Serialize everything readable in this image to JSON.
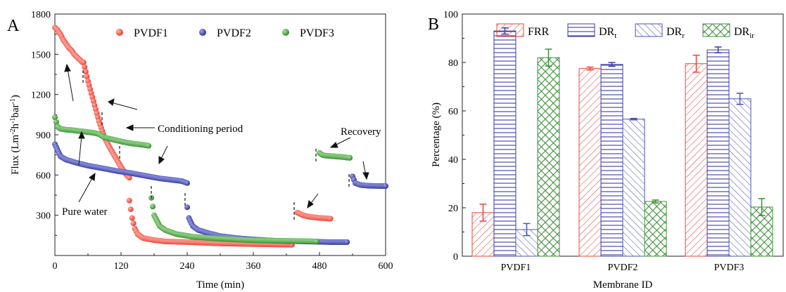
{
  "panel_a": {
    "panel_label": "A",
    "xlabel": "Time (min)",
    "ylabel_parts": [
      "Flux  (Lm",
      "-2",
      "h",
      "-1",
      "bar",
      "-1",
      ")"
    ],
    "annotations": {
      "conditioning": "Conditioning period",
      "pure_water": "Pure water",
      "recovery": "Recovery"
    }
  },
  "panel_b": {
    "panel_label": "B",
    "xlabel": "Membrane ID",
    "ylabel": "Percentage (%)"
  },
  "colors": {
    "pvdf1": "#ef3b2f",
    "pvdf2": "#3a3fa8",
    "pvdf3": "#3f9b35",
    "frr": "#e8453a",
    "drt": "#3b3ba8",
    "drr": "#4b55b0",
    "drir": "#3f8f3a"
  },
  "chart_data": [
    {
      "type": "scatter",
      "xlabel": "Time (min)",
      "ylabel": "Flux (Lm-2h-1bar-1)",
      "xlim": [
        0,
        600
      ],
      "ylim": [
        0,
        1800
      ],
      "xticks": [
        0,
        120,
        240,
        360,
        480,
        600
      ],
      "yticks": [
        300,
        600,
        900,
        1200,
        1500,
        1800
      ],
      "legend": "top-center",
      "series": [
        {
          "name": "PVDF1",
          "color": "#ef3b2f",
          "segments": [
            {
              "x": [
                0,
                5,
                10,
                15,
                20,
                25,
                30,
                35,
                40,
                45,
                50
              ],
              "y": [
                1700,
                1680,
                1650,
                1610,
                1580,
                1550,
                1530,
                1500,
                1480,
                1460,
                1440
              ]
            },
            {
              "x": [
                52,
                60,
                70,
                80,
                90,
                100,
                110,
                120,
                128,
                135
              ],
              "y": [
                1440,
                1300,
                1150,
                1000,
                880,
                800,
                730,
                660,
                610,
                580
              ]
            },
            {
              "x": [
                135,
                140,
                145,
                150,
                160,
                180,
                200,
                240,
                300,
                360,
                400,
                430
              ],
              "y": [
                410,
                280,
                200,
                160,
                130,
                115,
                105,
                100,
                90,
                85,
                82,
                80
              ]
            },
            {
              "x": [
                440,
                450,
                460,
                470,
                480,
                490,
                500
              ],
              "y": [
                320,
                300,
                290,
                285,
                280,
                278,
                275
              ]
            }
          ]
        },
        {
          "name": "PVDF2",
          "color": "#3a3fa8",
          "segments": [
            {
              "x": [
                0,
                10,
                20,
                40,
                60,
                80,
                100,
                115
              ],
              "y": [
                830,
                740,
                715,
                690,
                670,
                655,
                640,
                628
              ]
            },
            {
              "x": [
                115,
                130,
                150,
                170,
                190,
                210,
                230,
                240
              ],
              "y": [
                628,
                620,
                605,
                590,
                575,
                565,
                555,
                540
              ]
            },
            {
              "x": [
                240,
                243,
                250,
                260,
                280,
                300,
                330,
                360,
                400,
                450,
                500,
                530
              ],
              "y": [
                360,
                280,
                220,
                190,
                165,
                145,
                130,
                120,
                110,
                105,
                100,
                100
              ]
            },
            {
              "x": [
                540,
                545,
                555,
                570,
                590,
                600
              ],
              "y": [
                590,
                540,
                525,
                520,
                518,
                518
              ]
            }
          ]
        },
        {
          "name": "PVDF3",
          "color": "#3f9b35",
          "segments": [
            {
              "x": [
                0,
                5,
                10,
                20,
                30,
                40,
                50,
                60,
                70,
                80
              ],
              "y": [
                1030,
                960,
                945,
                938,
                935,
                930,
                925,
                920,
                915,
                905
              ]
            },
            {
              "x": [
                80,
                90,
                100,
                110,
                120,
                130,
                140,
                150,
                160,
                170
              ],
              "y": [
                905,
                880,
                870,
                860,
                850,
                842,
                835,
                830,
                825,
                818
              ]
            },
            {
              "x": [
                175,
                180,
                190,
                200,
                220,
                250,
                300,
                350,
                400,
                440,
                475
              ],
              "y": [
                430,
                300,
                220,
                190,
                160,
                140,
                125,
                115,
                110,
                108,
                105
              ]
            },
            {
              "x": [
                480,
                485,
                490,
                500,
                510,
                520,
                530,
                535
              ],
              "y": [
                765,
                750,
                745,
                742,
                738,
                735,
                730,
                728
              ]
            }
          ]
        }
      ]
    },
    {
      "type": "bar",
      "xlabel": "Membrane ID",
      "ylabel": "Percentage (%)",
      "categories": [
        "PVDF1",
        "PVDF2",
        "PVDF3"
      ],
      "ylim": [
        0,
        100
      ],
      "yticks": [
        0,
        20,
        40,
        60,
        80,
        100
      ],
      "legend": "top",
      "series": [
        {
          "name": "FRR",
          "sub": "",
          "color": "#e8453a",
          "pattern": "diag-right",
          "values": [
            18,
            77.5,
            79.5
          ],
          "errors": [
            3.5,
            0.6,
            3.5
          ]
        },
        {
          "name": "DR",
          "sub": "t",
          "color": "#3b3ba8",
          "pattern": "horizontal",
          "values": [
            93,
            79.2,
            85.2
          ],
          "errors": [
            1.3,
            0.8,
            1.2
          ]
        },
        {
          "name": "DR",
          "sub": "r",
          "color": "#4b55b0",
          "pattern": "diag-left",
          "values": [
            11,
            56.6,
            65
          ],
          "errors": [
            2.5,
            0.3,
            2.3
          ]
        },
        {
          "name": "DR",
          "sub": "ir",
          "color": "#3f8f3a",
          "pattern": "cross",
          "values": [
            82,
            22.6,
            20.3
          ],
          "errors": [
            3.5,
            0.6,
            3.5
          ]
        }
      ]
    }
  ]
}
